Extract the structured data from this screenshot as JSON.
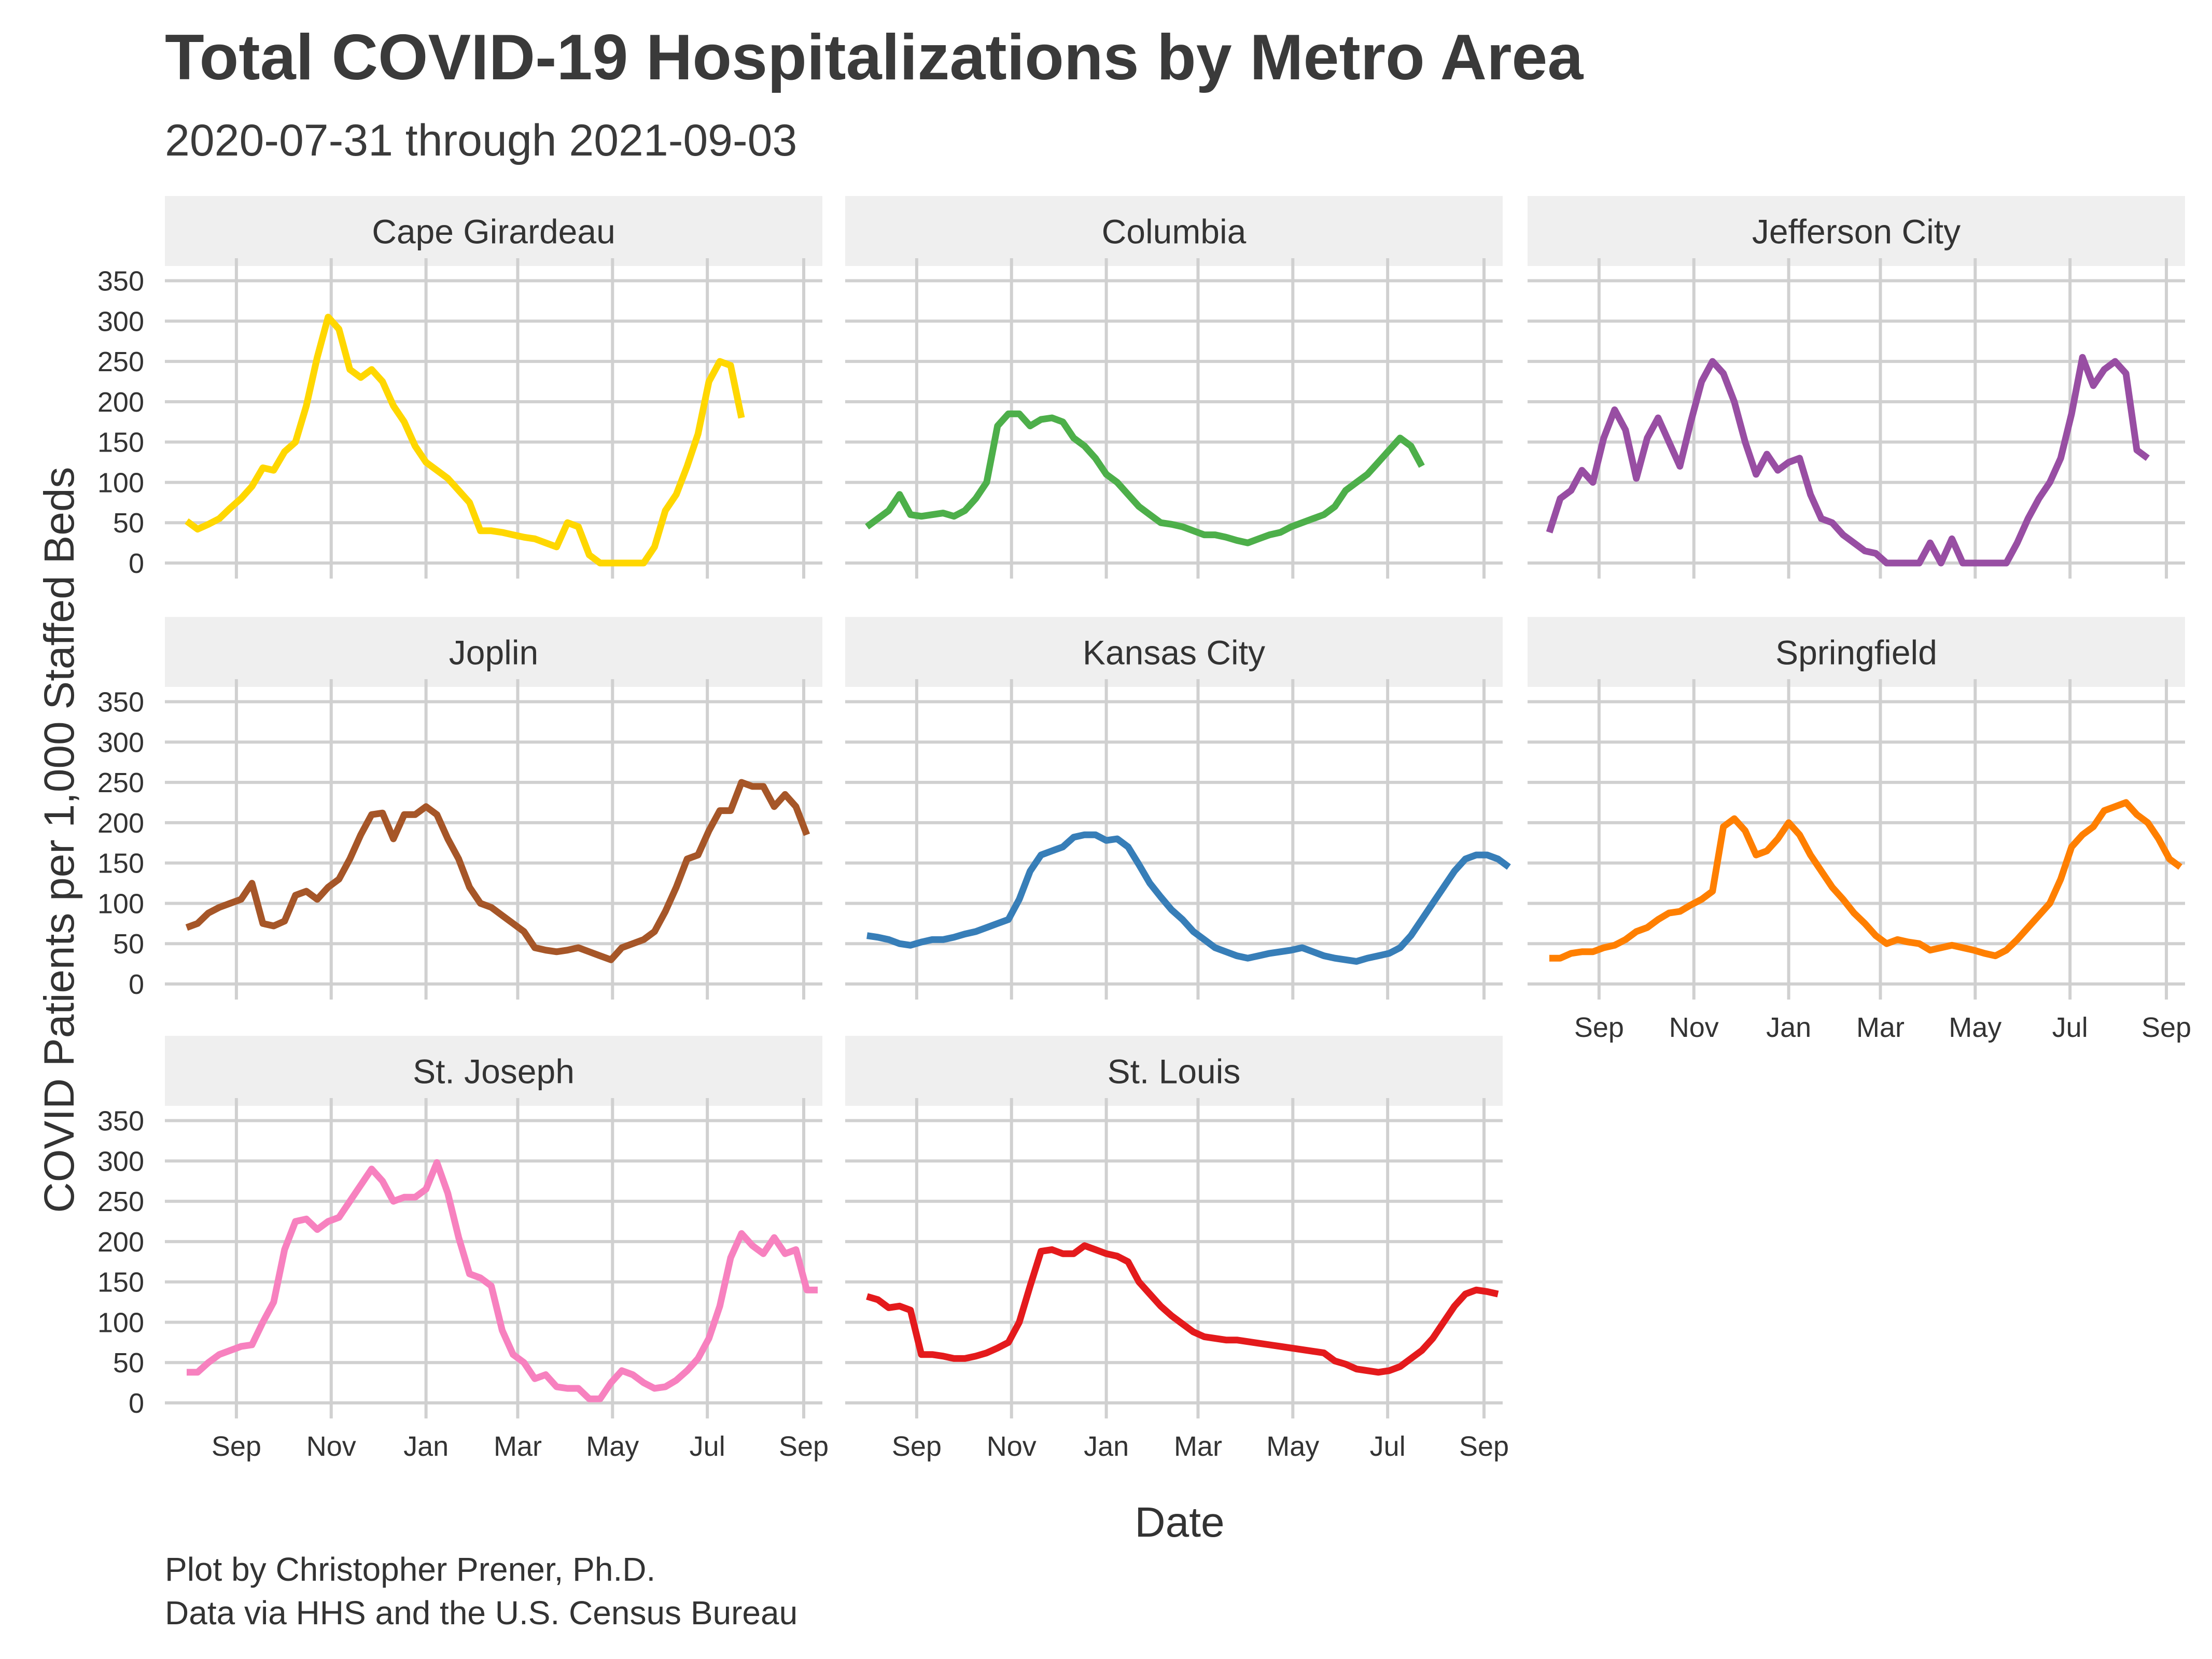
{
  "title": "Total COVID-19 Hospitalizations by Metro Area",
  "subtitle": "2020-07-31 through 2021-09-03",
  "caption": [
    "Plot by Christopher Prener, Ph.D.",
    "Data via HHS and the U.S. Census Bureau"
  ],
  "chart_data": {
    "type": "line",
    "title": "Total COVID-19 Hospitalizations by Metro Area",
    "subtitle": "2020-07-31 through 2021-09-03",
    "xlabel": "Date",
    "ylabel": "COVID Patients per 1,000 Staffed Beds",
    "x_start": "2020-07-31",
    "x_step_days": 7,
    "x_ticks": [
      {
        "date": "2020-09-01",
        "label": "Sep"
      },
      {
        "date": "2020-11-01",
        "label": "Nov"
      },
      {
        "date": "2021-01-01",
        "label": "Jan"
      },
      {
        "date": "2021-03-01",
        "label": "Mar"
      },
      {
        "date": "2021-05-01",
        "label": "May"
      },
      {
        "date": "2021-07-01",
        "label": "Jul"
      },
      {
        "date": "2021-09-01",
        "label": "Sep"
      }
    ],
    "y_ticks": [
      0,
      50,
      100,
      150,
      200,
      250,
      300,
      350
    ],
    "ylim": [
      0,
      360
    ],
    "grid": true,
    "legend": "none",
    "panels": [
      {
        "name": "Cape Girardeau",
        "color": "#FFD700",
        "values": [
          52,
          42,
          48,
          55,
          68,
          80,
          95,
          118,
          115,
          138,
          150,
          195,
          255,
          305,
          290,
          240,
          230,
          240,
          225,
          195,
          175,
          145,
          125,
          115,
          105,
          90,
          75,
          40,
          40,
          38,
          35,
          32,
          30,
          25,
          20,
          50,
          45,
          10,
          0,
          0,
          0,
          0,
          0,
          20,
          65,
          85,
          120,
          160,
          225,
          250,
          245,
          180
        ]
      },
      {
        "name": "Columbia",
        "color": "#4DAF4A",
        "values": [
          45,
          55,
          65,
          85,
          60,
          58,
          60,
          62,
          58,
          65,
          80,
          100,
          170,
          185,
          185,
          170,
          178,
          180,
          175,
          155,
          145,
          130,
          110,
          100,
          85,
          70,
          60,
          50,
          48,
          45,
          40,
          35,
          35,
          32,
          28,
          25,
          30,
          35,
          38,
          45,
          50,
          55,
          60,
          70,
          90,
          100,
          110,
          125,
          140,
          155,
          145,
          120
        ]
      },
      {
        "name": "Jefferson City",
        "color": "#984EA3",
        "values": [
          38,
          80,
          90,
          115,
          100,
          155,
          190,
          165,
          105,
          155,
          180,
          150,
          120,
          175,
          225,
          250,
          235,
          200,
          150,
          110,
          135,
          115,
          125,
          130,
          85,
          55,
          50,
          35,
          25,
          15,
          12,
          0,
          0,
          0,
          0,
          25,
          0,
          30,
          0,
          0,
          0,
          0,
          0,
          25,
          55,
          80,
          100,
          130,
          185,
          255,
          220,
          240,
          250,
          235,
          140,
          130
        ]
      },
      {
        "name": "Joplin",
        "color": "#A65628",
        "values": [
          70,
          75,
          88,
          95,
          100,
          105,
          125,
          75,
          72,
          78,
          110,
          115,
          105,
          120,
          130,
          155,
          185,
          210,
          212,
          180,
          210,
          210,
          220,
          210,
          180,
          155,
          120,
          100,
          95,
          85,
          75,
          65,
          45,
          42,
          40,
          42,
          45,
          40,
          35,
          30,
          45,
          50,
          55,
          65,
          90,
          120,
          155,
          160,
          190,
          215,
          215,
          250,
          245,
          245,
          220,
          235,
          220,
          185
        ]
      },
      {
        "name": "Kansas City",
        "color": "#377EB8",
        "values": [
          60,
          58,
          55,
          50,
          48,
          52,
          55,
          55,
          58,
          62,
          65,
          70,
          75,
          80,
          105,
          140,
          160,
          165,
          170,
          182,
          185,
          185,
          178,
          180,
          170,
          148,
          125,
          108,
          92,
          80,
          65,
          55,
          45,
          40,
          35,
          32,
          35,
          38,
          40,
          42,
          45,
          40,
          35,
          32,
          30,
          28,
          32,
          35,
          38,
          45,
          60,
          80,
          100,
          120,
          140,
          155,
          160,
          160,
          155,
          145
        ]
      },
      {
        "name": "Springfield",
        "color": "#FF7F00",
        "values": [
          32,
          32,
          38,
          40,
          40,
          45,
          48,
          55,
          65,
          70,
          80,
          88,
          90,
          98,
          105,
          115,
          195,
          205,
          190,
          160,
          165,
          180,
          200,
          185,
          160,
          140,
          120,
          105,
          88,
          75,
          60,
          50,
          55,
          52,
          50,
          42,
          45,
          48,
          45,
          42,
          38,
          35,
          42,
          55,
          70,
          85,
          100,
          130,
          170,
          185,
          195,
          215,
          220,
          225,
          210,
          200,
          180,
          155,
          145
        ]
      },
      {
        "name": "St. Joseph",
        "color": "#F781BF",
        "values": [
          38,
          38,
          50,
          60,
          65,
          70,
          72,
          100,
          125,
          190,
          225,
          228,
          215,
          225,
          230,
          250,
          270,
          290,
          275,
          250,
          255,
          255,
          265,
          298,
          260,
          205,
          160,
          155,
          145,
          90,
          60,
          50,
          30,
          35,
          20,
          18,
          18,
          5,
          5,
          25,
          40,
          35,
          25,
          18,
          20,
          28,
          40,
          55,
          80,
          120,
          180,
          210,
          195,
          185,
          205,
          185,
          190,
          140,
          140
        ]
      },
      {
        "name": "St. Louis",
        "color": "#E41A1C",
        "values": [
          132,
          128,
          118,
          120,
          115,
          60,
          60,
          58,
          55,
          55,
          58,
          62,
          68,
          75,
          100,
          145,
          188,
          190,
          185,
          185,
          195,
          190,
          185,
          182,
          175,
          150,
          135,
          120,
          108,
          98,
          88,
          82,
          80,
          78,
          78,
          76,
          74,
          72,
          70,
          68,
          66,
          64,
          62,
          52,
          48,
          42,
          40,
          38,
          40,
          45,
          55,
          65,
          80,
          100,
          120,
          135,
          140,
          138,
          135
        ]
      }
    ]
  }
}
